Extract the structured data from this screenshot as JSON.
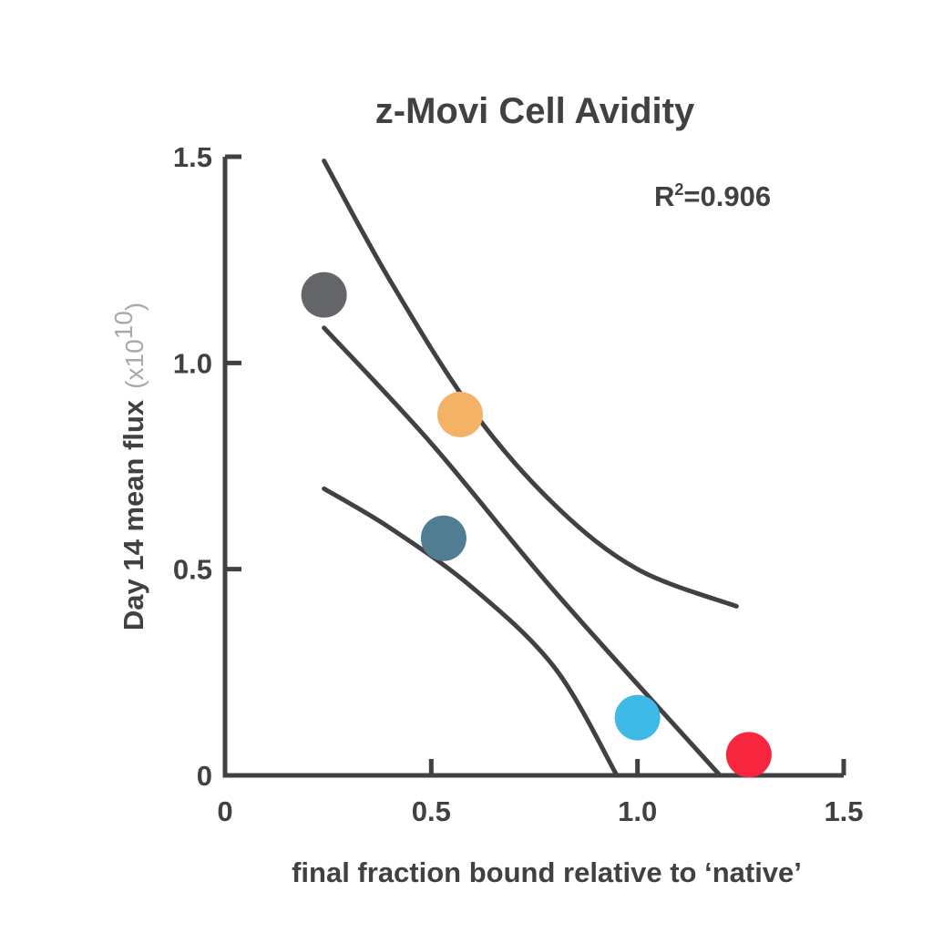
{
  "chart_data": {
    "type": "scatter",
    "title": "z-Movi Cell Avidity",
    "xlabel": "final fraction bound relative to ‘native’",
    "ylabel": "Day 14 mean flux",
    "ylabel_unit_prefix": "(x10",
    "ylabel_unit_exp": "10",
    "ylabel_unit_suffix": ")",
    "xlim": [
      0,
      1.5
    ],
    "ylim": [
      0,
      1.5
    ],
    "x_ticks": [
      {
        "value": 0,
        "label": "0"
      },
      {
        "value": 0.5,
        "label": "0.5"
      },
      {
        "value": 1.0,
        "label": "1.0"
      },
      {
        "value": 1.5,
        "label": "1.5"
      }
    ],
    "y_ticks": [
      {
        "value": 0,
        "label": "0"
      },
      {
        "value": 0.5,
        "label": "0.5"
      },
      {
        "value": 1.0,
        "label": "1.0"
      },
      {
        "value": 1.5,
        "label": "1.5"
      }
    ],
    "annotation": {
      "prefix": "R",
      "sup": "2",
      "suffix": "=0.906"
    },
    "grid": false,
    "points": [
      {
        "x": 0.24,
        "y": 1.165,
        "color": "#646569"
      },
      {
        "x": 0.57,
        "y": 0.875,
        "color": "#f4b266"
      },
      {
        "x": 0.53,
        "y": 0.575,
        "color": "#517d93"
      },
      {
        "x": 1.0,
        "y": 0.14,
        "color": "#3fbae6"
      },
      {
        "x": 1.27,
        "y": 0.05,
        "color": "#f7263e"
      }
    ],
    "fit_lines": [
      {
        "name": "fit",
        "points": [
          [
            0.24,
            1.085
          ],
          [
            0.5,
            0.805
          ],
          [
            0.8,
            0.445
          ],
          [
            1.2,
            0.0
          ]
        ]
      },
      {
        "name": "upper-band",
        "points": [
          [
            0.24,
            1.49
          ],
          [
            0.4,
            1.2
          ],
          [
            0.6,
            0.885
          ],
          [
            0.8,
            0.655
          ],
          [
            1.0,
            0.5
          ],
          [
            1.24,
            0.41
          ]
        ]
      },
      {
        "name": "lower-band",
        "points": [
          [
            0.24,
            0.695
          ],
          [
            0.4,
            0.6
          ],
          [
            0.6,
            0.455
          ],
          [
            0.8,
            0.26
          ],
          [
            0.95,
            0.0
          ]
        ]
      }
    ]
  }
}
